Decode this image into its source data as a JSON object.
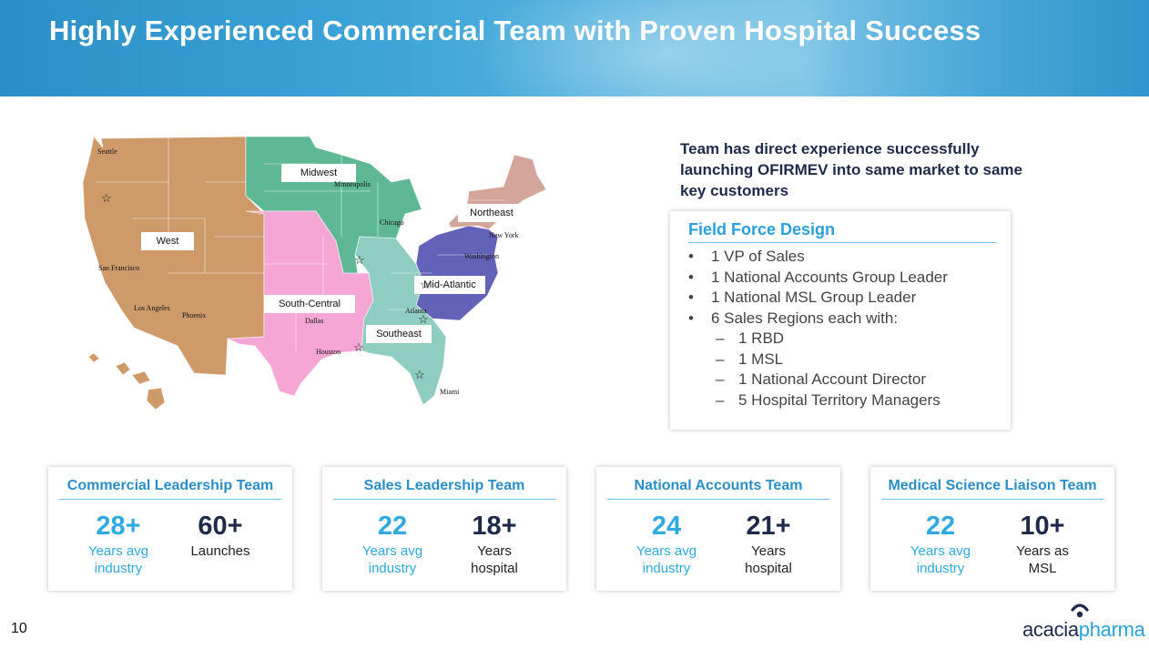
{
  "header": {
    "title": "Highly Experienced Commercial Team with Proven Hospital Success"
  },
  "colors": {
    "west": "#cf9a6a",
    "midwest": "#5fb895",
    "south_central": "#f5a6d5",
    "northeast": "#d4a59a",
    "mid_atlantic": "#6262b8",
    "southeast": "#8fcdc0",
    "accent": "#2aa0dc",
    "navy": "#1f2a4a"
  },
  "map": {
    "regions": [
      "West",
      "Midwest",
      "South-Central",
      "Northeast",
      "Mid-Atlantic",
      "Southeast"
    ],
    "cities": [
      "Seattle",
      "San Francisco",
      "Los Angeles",
      "Phoenix",
      "Minneapolis",
      "Chicago",
      "New York",
      "Washington",
      "Dallas",
      "Houston",
      "Atlanta",
      "Miami"
    ]
  },
  "intro": "Team has direct experience successfully launching OFIRMEV into same market to same key customers",
  "field_force": {
    "title": "Field Force Design",
    "items": [
      "1 VP of Sales",
      "1 National Accounts Group Leader",
      "1 National MSL Group Leader",
      "6 Sales Regions each with:"
    ],
    "sub_items": [
      "1 RBD",
      "1 MSL",
      "1 National Account Director",
      "5 Hospital Territory Managers"
    ]
  },
  "cards": [
    {
      "title": "Commercial Leadership Team",
      "stat1": {
        "value": "28+",
        "label1": "Years avg",
        "label2": "industry"
      },
      "stat2": {
        "value": "60+",
        "label1": "Launches",
        "label2": ""
      }
    },
    {
      "title": "Sales Leadership Team",
      "stat1": {
        "value": "22",
        "label1": "Years avg",
        "label2": "industry"
      },
      "stat2": {
        "value": "18+",
        "label1": "Years",
        "label2": "hospital"
      }
    },
    {
      "title": "National Accounts Team",
      "stat1": {
        "value": "24",
        "label1": "Years avg",
        "label2": "industry"
      },
      "stat2": {
        "value": "21+",
        "label1": "Years",
        "label2": "hospital"
      }
    },
    {
      "title": "Medical Science Liaison Team",
      "stat1": {
        "value": "22",
        "label1": "Years avg",
        "label2": "industry"
      },
      "stat2": {
        "value": "10+",
        "label1": "Years as",
        "label2": "MSL"
      }
    }
  ],
  "footer": {
    "page_number": "10",
    "logo_part1": "acacia",
    "logo_part2": "pharma"
  }
}
